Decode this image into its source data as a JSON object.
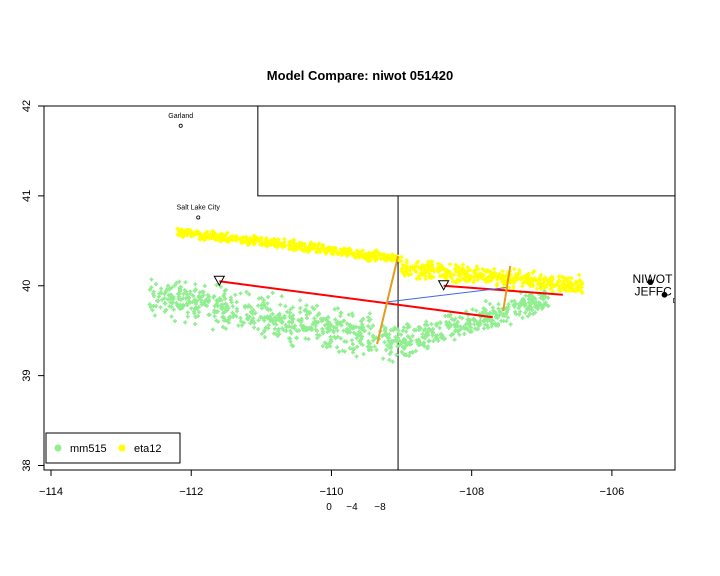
{
  "chart_data": {
    "type": "scatter",
    "title": "Model Compare:  niwot 051420",
    "xlabel": "",
    "ylabel": "",
    "xlim": [
      -114.1,
      -105.1
    ],
    "ylim": [
      37.95,
      42.0
    ],
    "x_ticks": [
      -114,
      -112,
      -110,
      -108,
      -106
    ],
    "x_tick_labels": [
      "−114",
      "−112",
      "−110",
      "−108",
      "−106"
    ],
    "y_ticks": [
      38,
      39,
      40,
      41,
      42
    ],
    "y_tick_labels": [
      "38",
      "39",
      "40",
      "41",
      "42"
    ],
    "grid": false,
    "legend": {
      "position": "bottom-left",
      "entries": [
        {
          "name": "mm515",
          "color": "#90EE90"
        },
        {
          "name": "eta12",
          "color": "#FFFF00"
        }
      ]
    },
    "offset_labels": [
      "0",
      "−4",
      "−8"
    ],
    "series": [
      {
        "name": "mm515",
        "color": "#90EE90",
        "marker": "+",
        "regions": [
          {
            "x_range": [
              -112.6,
              -108.8
            ],
            "y_center_start": 39.9,
            "y_center_end": 39.35,
            "spread": 0.32
          },
          {
            "x_range": [
              -108.8,
              -106.9
            ],
            "y_center_start": 39.4,
            "y_center_end": 39.85,
            "spread": 0.22
          }
        ]
      },
      {
        "name": "eta12",
        "color": "#FFFF00",
        "marker": "+",
        "regions": [
          {
            "x_range": [
              -112.2,
              -109.0
            ],
            "y_center_start": 40.6,
            "y_center_end": 40.3,
            "spread": 0.08
          },
          {
            "x_range": [
              -109.0,
              -106.4
            ],
            "y_center_start": 40.2,
            "y_center_end": 40.0,
            "spread": 0.14
          }
        ]
      }
    ],
    "lines": [
      {
        "color": "#ff0000",
        "width": 2,
        "points": [
          [
            -111.6,
            40.05
          ],
          [
            -107.7,
            39.65
          ]
        ]
      },
      {
        "color": "#ff0000",
        "width": 2,
        "points": [
          [
            -108.4,
            40.0
          ],
          [
            -106.7,
            39.9
          ]
        ]
      },
      {
        "color": "#4169E1",
        "width": 1,
        "points": [
          [
            -109.2,
            39.82
          ],
          [
            -107.5,
            39.98
          ]
        ]
      },
      {
        "color": "#E69A1F",
        "width": 2,
        "points": [
          [
            -109.05,
            40.33
          ],
          [
            -109.35,
            39.35
          ]
        ]
      },
      {
        "color": "#E69A1F",
        "width": 2,
        "points": [
          [
            -107.45,
            40.22
          ],
          [
            -107.55,
            39.72
          ]
        ]
      }
    ],
    "triangles": [
      {
        "x": -111.6,
        "y": 40.05
      },
      {
        "x": -108.4,
        "y": 40.0
      }
    ],
    "boundaries": [
      [
        [
          -114.1,
          42.0
        ],
        [
          -111.05,
          42.0
        ],
        [
          -111.05,
          41.0
        ],
        [
          -105.1,
          41.0
        ]
      ],
      [
        [
          -109.05,
          41.0
        ],
        [
          -109.05,
          37.95
        ]
      ]
    ],
    "cities": [
      {
        "name": "Garland",
        "x": -112.15,
        "y": 41.78,
        "size": "small"
      },
      {
        "name": "Salt Lake City",
        "x": -111.9,
        "y": 40.76,
        "size": "small"
      },
      {
        "name": "Den",
        "x": -104.99,
        "y": 39.74,
        "size": "small"
      },
      {
        "name": "NIWOT",
        "x": -105.45,
        "y": 40.04,
        "size": "big"
      },
      {
        "name": "JEFFC",
        "x": -105.25,
        "y": 39.9,
        "size": "big"
      }
    ]
  }
}
